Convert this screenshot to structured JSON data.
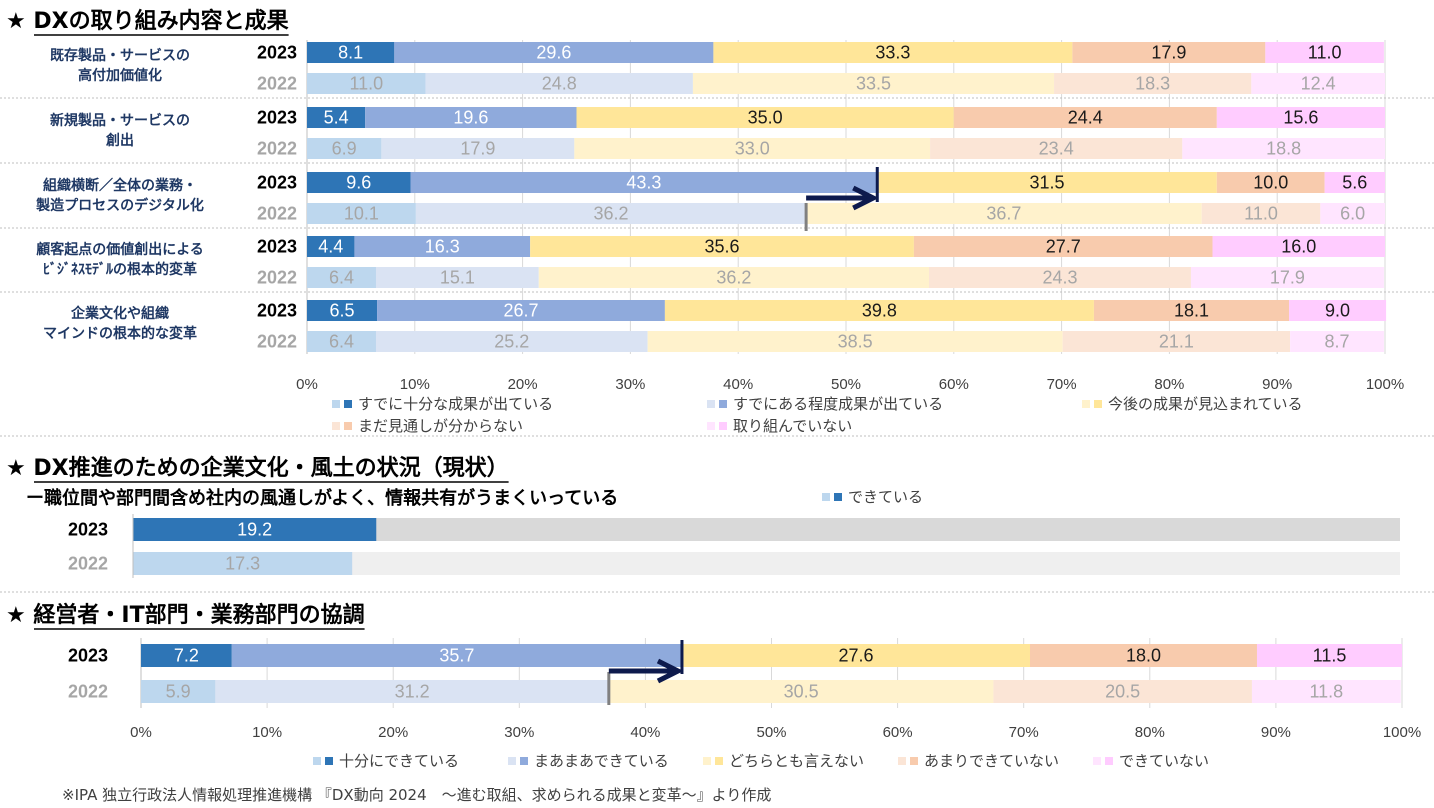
{
  "section1": {
    "title": "★ DXの取り組み内容と成果",
    "legend": [
      "すでに十分な成果が出ている",
      "すでにある程度成果が出ている",
      "今後の成果が見込まれている",
      "まだ見通しが分からない",
      "取り組んでいない"
    ],
    "colors": {
      "2023": [
        "#2e75b6",
        "#8faadc",
        "#ffe699",
        "#f8cbad",
        "#ffccff"
      ],
      "2022": [
        "#bdd7ee",
        "#dae3f3",
        "#fff2cc",
        "#fbe5d6",
        "#ffe5ff"
      ]
    }
  },
  "section2": {
    "title": "★ DX推進のための企業文化・風土の状況（現状）",
    "subtitle": "ー職位間や部門間含め社内の風通しがよく、情報共有がうまくいっている",
    "legend": [
      "できている"
    ]
  },
  "section3": {
    "title": "★ 経営者・IT部門・業務部門の協調",
    "legend": [
      "十分にできている",
      "まあまあできている",
      "どちらとも言えない",
      "あまりできていない",
      "できていない"
    ]
  },
  "axis_ticks": [
    "0%",
    "10%",
    "20%",
    "30%",
    "40%",
    "50%",
    "60%",
    "70%",
    "80%",
    "90%",
    "100%"
  ],
  "source": "※IPA 独立行政法人情報処理推進機構 『DX動向 2024　～進む取組、求められる成果と変革～』より作成",
  "chart_data": [
    {
      "type": "bar",
      "stacked": true,
      "orientation": "horizontal",
      "title": "DXの取り組み内容と成果",
      "xlim": [
        0,
        100
      ],
      "series_names": [
        "すでに十分な成果が出ている",
        "すでにある程度成果が出ている",
        "今後の成果が見込まれている",
        "まだ見通しが分からない",
        "取り組んでいない"
      ],
      "categories": [
        {
          "label": [
            "既存製品・サービスの",
            "高付加価値化"
          ],
          "rows": [
            {
              "year": "2023",
              "values": [
                8.1,
                29.6,
                33.3,
                17.9,
                11.0
              ]
            },
            {
              "year": "2022",
              "values": [
                11.0,
                24.8,
                33.5,
                18.3,
                12.4
              ]
            }
          ]
        },
        {
          "label": [
            "新規製品・サービスの",
            "創出"
          ],
          "rows": [
            {
              "year": "2023",
              "values": [
                5.4,
                19.6,
                35.0,
                24.4,
                15.6
              ]
            },
            {
              "year": "2022",
              "values": [
                6.9,
                17.9,
                33.0,
                23.4,
                18.8
              ]
            }
          ]
        },
        {
          "label": [
            "組織横断／全体の業務・",
            "製造プロセスのデジタル化"
          ],
          "rows": [
            {
              "year": "2023",
              "values": [
                9.6,
                43.3,
                31.5,
                10.0,
                5.6
              ]
            },
            {
              "year": "2022",
              "values": [
                10.1,
                36.2,
                36.7,
                11.0,
                6.0
              ]
            }
          ]
        },
        {
          "label": [
            "顧客起点の価値創出による",
            "ﾋﾞｼﾞﾈｽﾓﾃﾞﾙの根本的変革"
          ],
          "rows": [
            {
              "year": "2023",
              "values": [
                4.4,
                16.3,
                35.6,
                27.7,
                16.0
              ]
            },
            {
              "year": "2022",
              "values": [
                6.4,
                15.1,
                36.2,
                24.3,
                17.9
              ]
            }
          ]
        },
        {
          "label": [
            "企業文化や組織",
            "マインドの根本的な変革"
          ],
          "rows": [
            {
              "year": "2023",
              "values": [
                6.5,
                26.7,
                39.8,
                18.1,
                9.0
              ]
            },
            {
              "year": "2022",
              "values": [
                6.4,
                25.2,
                38.5,
                21.1,
                8.7
              ]
            }
          ]
        }
      ]
    },
    {
      "type": "bar",
      "stacked": false,
      "orientation": "horizontal",
      "title": "DX推進のための企業文化・風土の状況（現状）",
      "xlim": [
        0,
        100
      ],
      "series_names": [
        "できている"
      ],
      "rows": [
        {
          "year": "2023",
          "values": [
            19.2
          ]
        },
        {
          "year": "2022",
          "values": [
            17.3
          ]
        }
      ]
    },
    {
      "type": "bar",
      "stacked": true,
      "orientation": "horizontal",
      "title": "経営者・IT部門・業務部門の協調",
      "xlim": [
        0,
        100
      ],
      "series_names": [
        "十分にできている",
        "まあまあできている",
        "どちらとも言えない",
        "あまりできていない",
        "できていない"
      ],
      "rows": [
        {
          "year": "2023",
          "values": [
            7.2,
            35.7,
            27.6,
            18.0,
            11.5
          ]
        },
        {
          "year": "2022",
          "values": [
            5.9,
            31.2,
            30.5,
            20.5,
            11.8
          ]
        }
      ]
    }
  ]
}
